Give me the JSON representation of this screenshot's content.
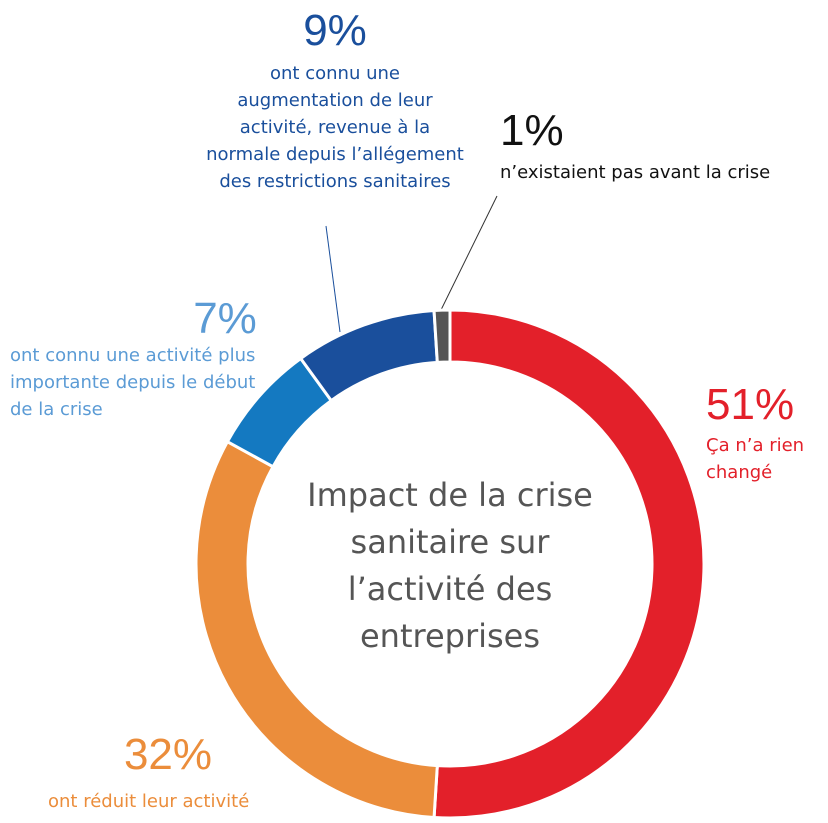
{
  "chart_data": {
    "type": "donut",
    "title": "Impact de la crise sanitaire sur l’activité des entreprises",
    "categories": [
      "Ça n’a rien changé",
      "ont réduit leur activité",
      "ont connu une activité plus importante depuis le début de la crise",
      "ont connu une augmentation de leur activité, revenue à la normale depuis l’allégement des restrictions sanitaires",
      "n’existaient pas avant la crise"
    ],
    "values": [
      51,
      32,
      7,
      9,
      1
    ],
    "value_labels": [
      "51%",
      "32%",
      "7%",
      "9%",
      "1%"
    ],
    "colors": [
      "#e3202a",
      "#eb8d3b",
      "#1479c1",
      "#1a4f9c",
      "#555555"
    ],
    "label_colors": [
      "#e3202a",
      "#eb8d3b",
      "#5b9bd5",
      "#1a4f9c",
      "#111111"
    ]
  }
}
